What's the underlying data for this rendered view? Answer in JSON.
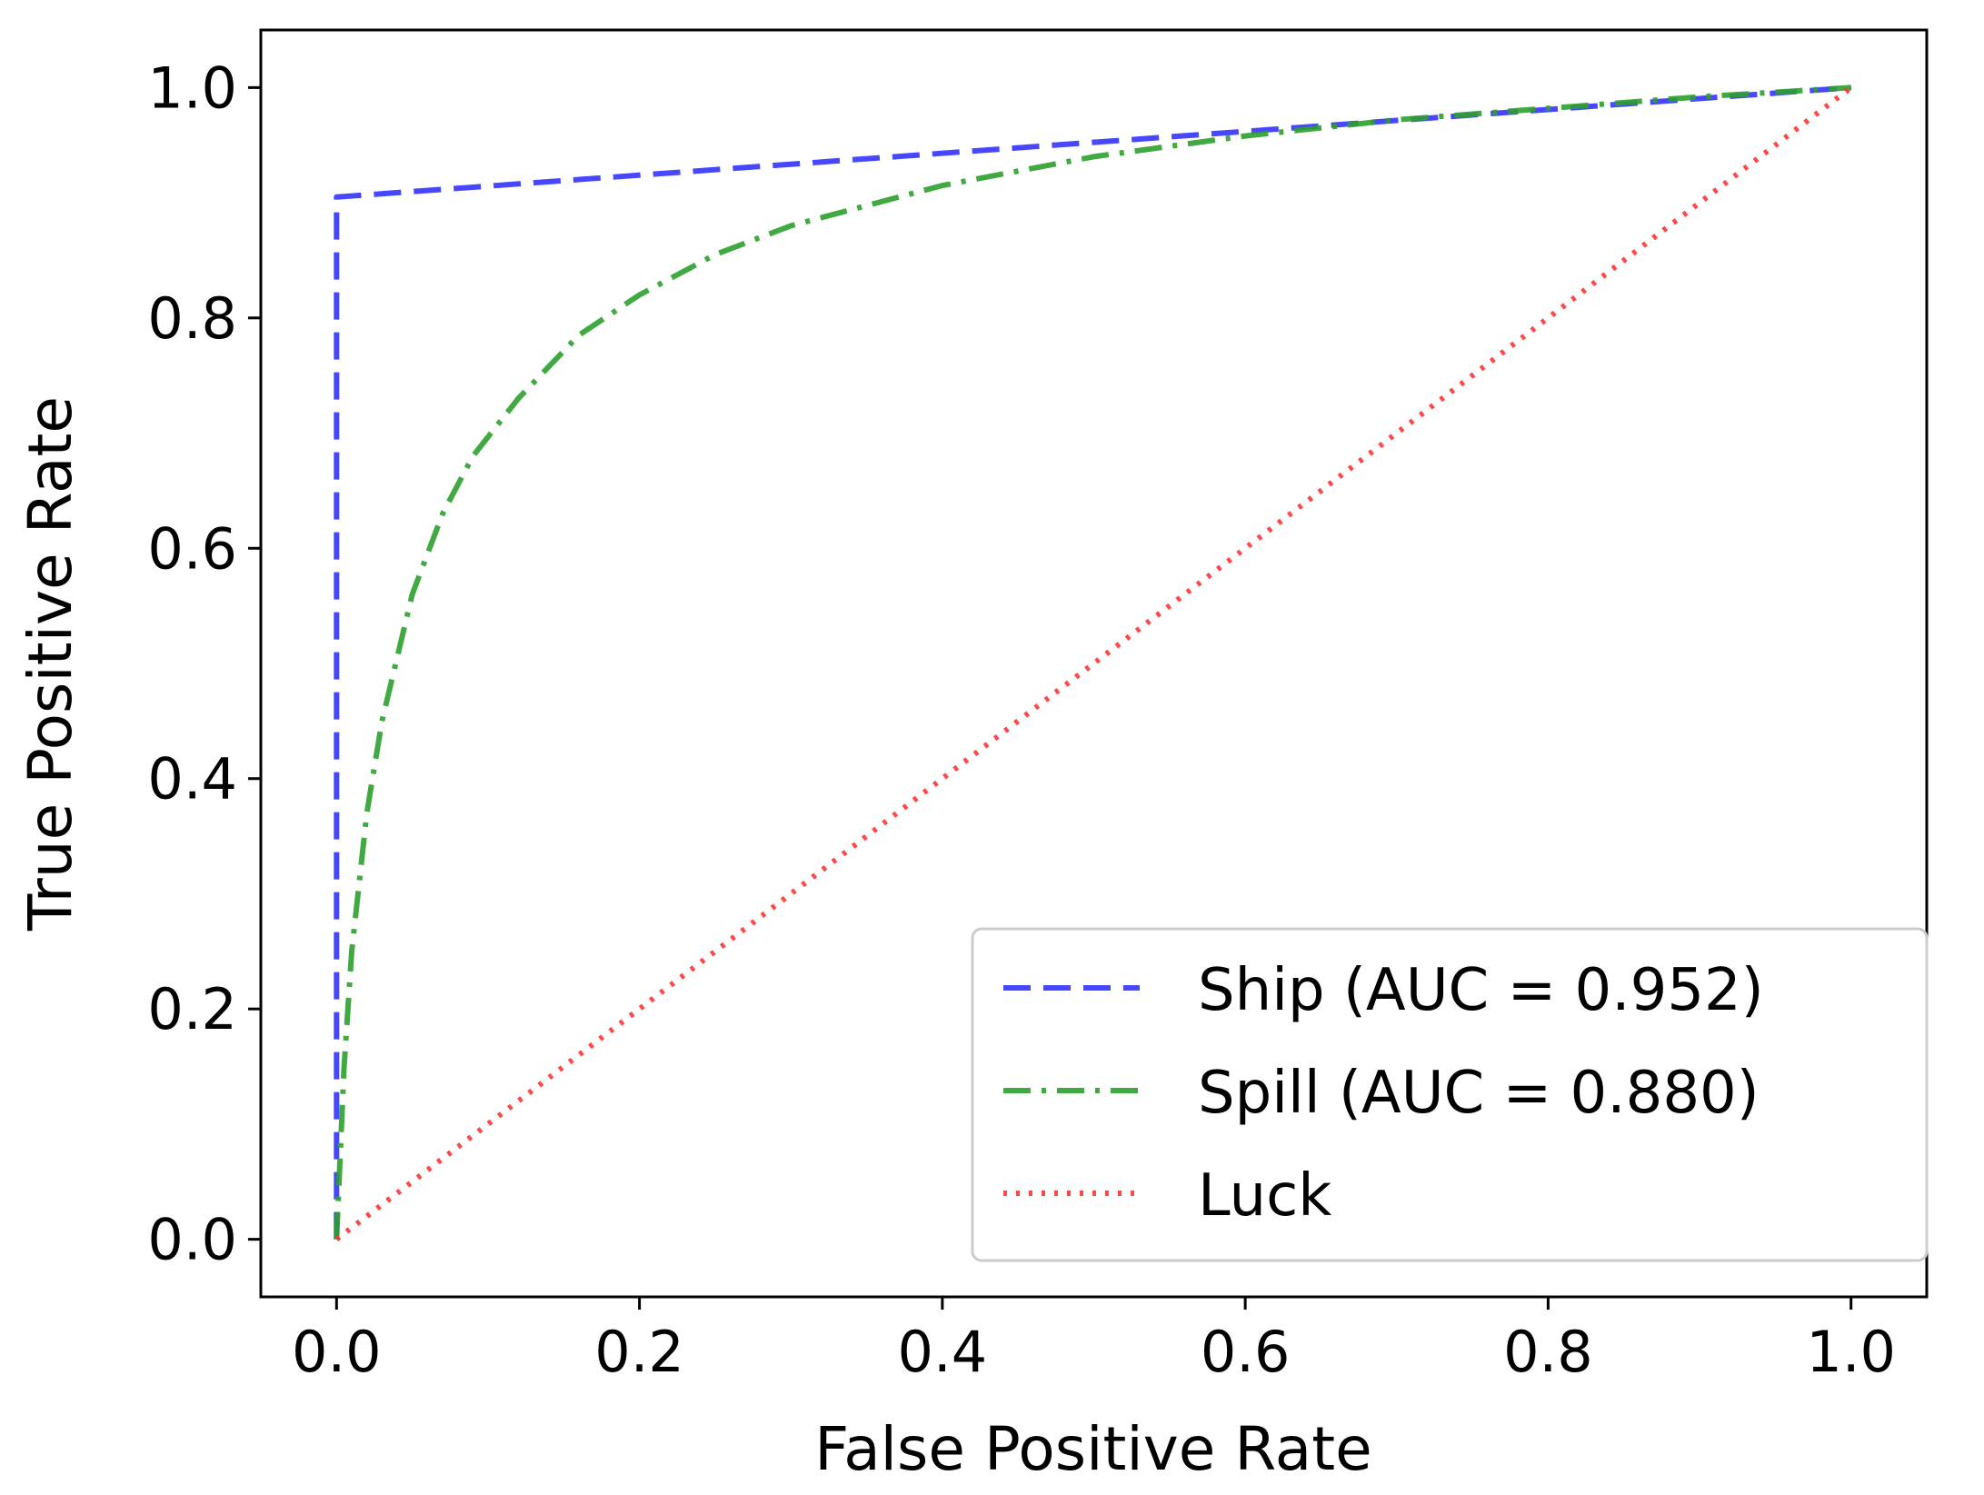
{
  "chart_data": {
    "type": "line",
    "title": "",
    "xlabel": "False Positive Rate",
    "ylabel": "True Positive Rate",
    "xlim": [
      -0.05,
      1.05
    ],
    "ylim": [
      -0.05,
      1.05
    ],
    "xticks": [
      0.0,
      0.2,
      0.4,
      0.6,
      0.8,
      1.0
    ],
    "yticks": [
      0.0,
      0.2,
      0.4,
      0.6,
      0.8,
      1.0
    ],
    "xtick_labels": [
      "0.0",
      "0.2",
      "0.4",
      "0.6",
      "0.8",
      "1.0"
    ],
    "ytick_labels": [
      "0.0",
      "0.2",
      "0.4",
      "0.6",
      "0.8",
      "1.0"
    ],
    "grid": false,
    "legend_position": "lower-right",
    "series": [
      {
        "name": "Ship (AUC = 0.952)",
        "color": "#3333ff",
        "style": "dashed",
        "x": [
          0.0,
          0.0,
          0.0,
          1.0
        ],
        "y": [
          0.0,
          0.86,
          0.905,
          1.0
        ]
      },
      {
        "name": "Spill (AUC = 0.880)",
        "color": "#2ca02c",
        "style": "dashdot",
        "x": [
          0.0,
          0.005,
          0.01,
          0.02,
          0.03,
          0.05,
          0.07,
          0.09,
          0.12,
          0.16,
          0.2,
          0.25,
          0.3,
          0.4,
          0.5,
          0.6,
          0.7,
          0.8,
          0.9,
          1.0
        ],
        "y": [
          0.0,
          0.15,
          0.25,
          0.37,
          0.45,
          0.56,
          0.63,
          0.68,
          0.73,
          0.785,
          0.82,
          0.855,
          0.88,
          0.915,
          0.94,
          0.958,
          0.972,
          0.982,
          0.992,
          1.0
        ]
      },
      {
        "name": "Luck",
        "color": "#ff3333",
        "style": "dotted",
        "x": [
          0.0,
          1.0
        ],
        "y": [
          0.0,
          1.0
        ]
      }
    ]
  }
}
